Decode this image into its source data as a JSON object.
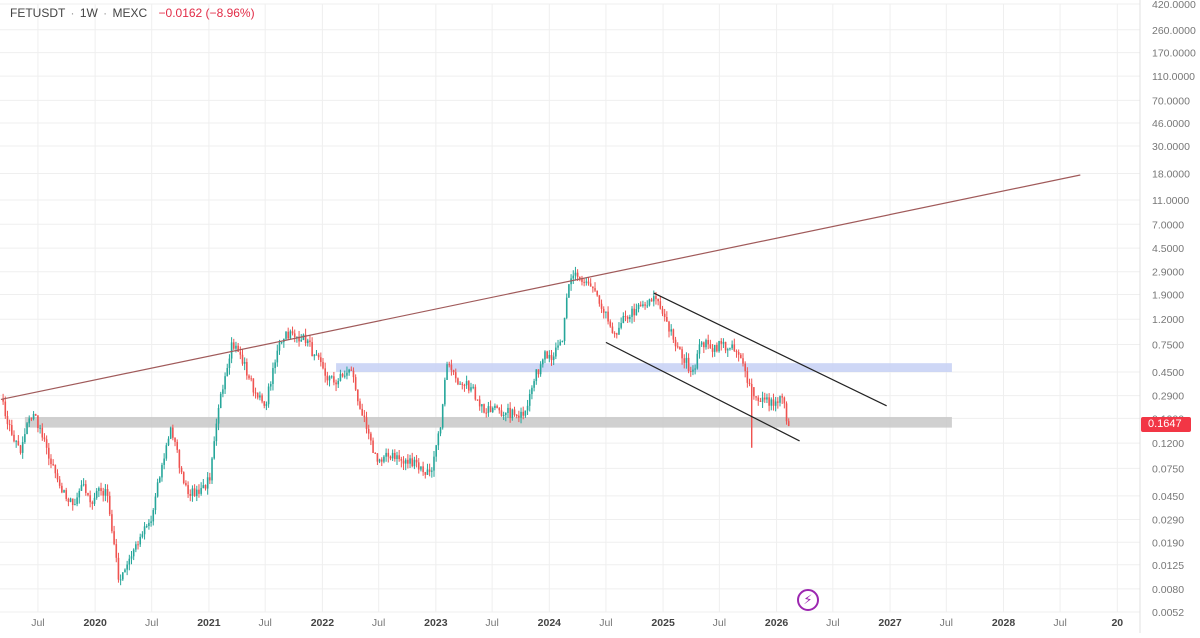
{
  "header": {
    "symbol": "FETUSDT",
    "separator": "·",
    "interval": "1W",
    "exchange": "MEXC",
    "change": "−0.0162 (−8.96%)"
  },
  "last_price_label": "0.1647",
  "colors": {
    "up": "#26a69a",
    "down": "#ef5350",
    "long_trendline": "#a05a5a",
    "channel_lines": "#222222",
    "zone_blue": "#c5d0f5",
    "zone_grey": "#c8c8c8",
    "price_tag": "#f23645",
    "grid": "#efefef",
    "axis_text": "#777777"
  },
  "chart_data": {
    "type": "candlestick",
    "scale": "log",
    "ylim": [
      0.0052,
      420
    ],
    "y_ticks": [
      "420.0000",
      "260.0000",
      "170.0000",
      "110.0000",
      "70.0000",
      "46.0000",
      "30.0000",
      "18.0000",
      "11.0000",
      "7.0000",
      "4.5000",
      "2.9000",
      "1.9000",
      "1.2000",
      "0.7500",
      "0.4500",
      "0.2900",
      "0.1900",
      "0.1200",
      "0.0750",
      "0.0450",
      "0.0290",
      "0.0190",
      "0.0125",
      "0.0080",
      "0.0052"
    ],
    "x_ticks": [
      {
        "label": "Jul",
        "date": "2019-07-01"
      },
      {
        "label": "2020",
        "date": "2020-01-01"
      },
      {
        "label": "Jul",
        "date": "2020-07-01"
      },
      {
        "label": "2021",
        "date": "2021-01-01"
      },
      {
        "label": "Jul",
        "date": "2021-07-01"
      },
      {
        "label": "2022",
        "date": "2022-01-01"
      },
      {
        "label": "Jul",
        "date": "2022-07-01"
      },
      {
        "label": "2023",
        "date": "2023-01-01"
      },
      {
        "label": "Jul",
        "date": "2023-07-01"
      },
      {
        "label": "2024",
        "date": "2024-01-01"
      },
      {
        "label": "Jul",
        "date": "2024-07-01"
      },
      {
        "label": "2025",
        "date": "2025-01-01"
      },
      {
        "label": "Jul",
        "date": "2025-07-01"
      },
      {
        "label": "2026",
        "date": "2026-01-01"
      },
      {
        "label": "Jul",
        "date": "2026-07-01"
      },
      {
        "label": "2027",
        "date": "2027-01-01"
      },
      {
        "label": "Jul",
        "date": "2027-07-01"
      },
      {
        "label": "2028",
        "date": "2028-01-01"
      },
      {
        "label": "Jul",
        "date": "2028-07-01"
      },
      {
        "label": "20",
        "date": "2029-01-01"
      }
    ],
    "x_range": [
      "2019-03-01",
      "2029-03-15"
    ],
    "last_price": 0.1647,
    "anchors": [
      [
        "2019-03-04",
        0.27
      ],
      [
        "2019-04-08",
        0.14
      ],
      [
        "2019-05-06",
        0.1
      ],
      [
        "2019-06-03",
        0.19
      ],
      [
        "2019-06-24",
        0.2
      ],
      [
        "2019-08-05",
        0.09
      ],
      [
        "2019-09-16",
        0.048
      ],
      [
        "2019-10-21",
        0.038
      ],
      [
        "2019-11-18",
        0.055
      ],
      [
        "2019-12-16",
        0.04
      ],
      [
        "2020-01-13",
        0.052
      ],
      [
        "2020-02-10",
        0.045
      ],
      [
        "2020-03-16",
        0.0095
      ],
      [
        "2020-04-20",
        0.014
      ],
      [
        "2020-05-25",
        0.021
      ],
      [
        "2020-06-29",
        0.028
      ],
      [
        "2020-08-03",
        0.08
      ],
      [
        "2020-08-31",
        0.16
      ],
      [
        "2020-10-05",
        0.07
      ],
      [
        "2020-11-02",
        0.045
      ],
      [
        "2020-12-07",
        0.052
      ],
      [
        "2021-01-04",
        0.06
      ],
      [
        "2021-02-08",
        0.3
      ],
      [
        "2021-03-15",
        0.78
      ],
      [
        "2021-04-12",
        0.62
      ],
      [
        "2021-05-10",
        0.4
      ],
      [
        "2021-06-07",
        0.28
      ],
      [
        "2021-06-28",
        0.24
      ],
      [
        "2021-07-19",
        0.36
      ],
      [
        "2021-08-16",
        0.78
      ],
      [
        "2021-09-06",
        0.95
      ],
      [
        "2021-10-04",
        0.86
      ],
      [
        "2021-11-01",
        0.9
      ],
      [
        "2021-12-06",
        0.62
      ],
      [
        "2022-01-10",
        0.42
      ],
      [
        "2022-02-07",
        0.37
      ],
      [
        "2022-03-14",
        0.42
      ],
      [
        "2022-04-04",
        0.46
      ],
      [
        "2022-05-09",
        0.2
      ],
      [
        "2022-06-13",
        0.1
      ],
      [
        "2022-07-11",
        0.085
      ],
      [
        "2022-08-15",
        0.1
      ],
      [
        "2022-09-19",
        0.082
      ],
      [
        "2022-10-24",
        0.088
      ],
      [
        "2022-11-21",
        0.07
      ],
      [
        "2022-12-19",
        0.072
      ],
      [
        "2023-01-16",
        0.16
      ],
      [
        "2023-02-06",
        0.52
      ],
      [
        "2023-03-06",
        0.4
      ],
      [
        "2023-04-10",
        0.38
      ],
      [
        "2023-05-15",
        0.27
      ],
      [
        "2023-06-12",
        0.21
      ],
      [
        "2023-07-17",
        0.23
      ],
      [
        "2023-08-14",
        0.21
      ],
      [
        "2023-09-18",
        0.2
      ],
      [
        "2023-10-16",
        0.22
      ],
      [
        "2023-11-13",
        0.38
      ],
      [
        "2023-12-18",
        0.66
      ],
      [
        "2024-01-15",
        0.6
      ],
      [
        "2024-02-12",
        0.8
      ],
      [
        "2024-03-04",
        2.3
      ],
      [
        "2024-03-25",
        2.85
      ],
      [
        "2024-04-15",
        2.4
      ],
      [
        "2024-05-13",
        2.2
      ],
      [
        "2024-06-10",
        1.6
      ],
      [
        "2024-07-08",
        1.15
      ],
      [
        "2024-08-05",
        0.9
      ],
      [
        "2024-09-02",
        1.25
      ],
      [
        "2024-10-07",
        1.45
      ],
      [
        "2024-11-11",
        1.55
      ],
      [
        "2024-12-09",
        1.75
      ],
      [
        "2025-01-06",
        1.25
      ],
      [
        "2025-02-03",
        0.82
      ],
      [
        "2025-03-03",
        0.58
      ],
      [
        "2025-04-07",
        0.47
      ],
      [
        "2025-05-05",
        0.78
      ],
      [
        "2025-06-02",
        0.7
      ],
      [
        "2025-07-07",
        0.76
      ],
      [
        "2025-08-04",
        0.7
      ],
      [
        "2025-09-01",
        0.62
      ],
      [
        "2025-10-06",
        0.36
      ],
      [
        "2025-10-27",
        0.28
      ],
      [
        "2025-11-24",
        0.27
      ],
      [
        "2025-12-22",
        0.24
      ],
      [
        "2026-01-19",
        0.28
      ],
      [
        "2026-02-09",
        0.165
      ]
    ],
    "wicks": [
      {
        "date": "2025-10-13",
        "low": 0.11
      }
    ],
    "trendlines": [
      {
        "name": "long-term-resistance",
        "from": [
          "2019-03-04",
          0.27
        ],
        "to": [
          "2028-09-04",
          17.5
        ]
      },
      {
        "name": "falling-wedge-upper",
        "from": [
          "2024-12-02",
          1.95
        ],
        "to": [
          "2026-12-21",
          0.24
        ]
      },
      {
        "name": "falling-wedge-lower",
        "from": [
          "2024-07-01",
          0.78
        ],
        "to": [
          "2026-03-16",
          0.125
        ]
      }
    ],
    "zones": [
      {
        "name": "resistance-zone-blue",
        "from": "2022-02-14",
        "to": "2027-07-19",
        "low": 0.45,
        "high": 0.53
      },
      {
        "name": "support-zone-grey",
        "from": "2019-05-20",
        "to": "2027-07-19",
        "low": 0.16,
        "high": 0.195
      }
    ]
  }
}
